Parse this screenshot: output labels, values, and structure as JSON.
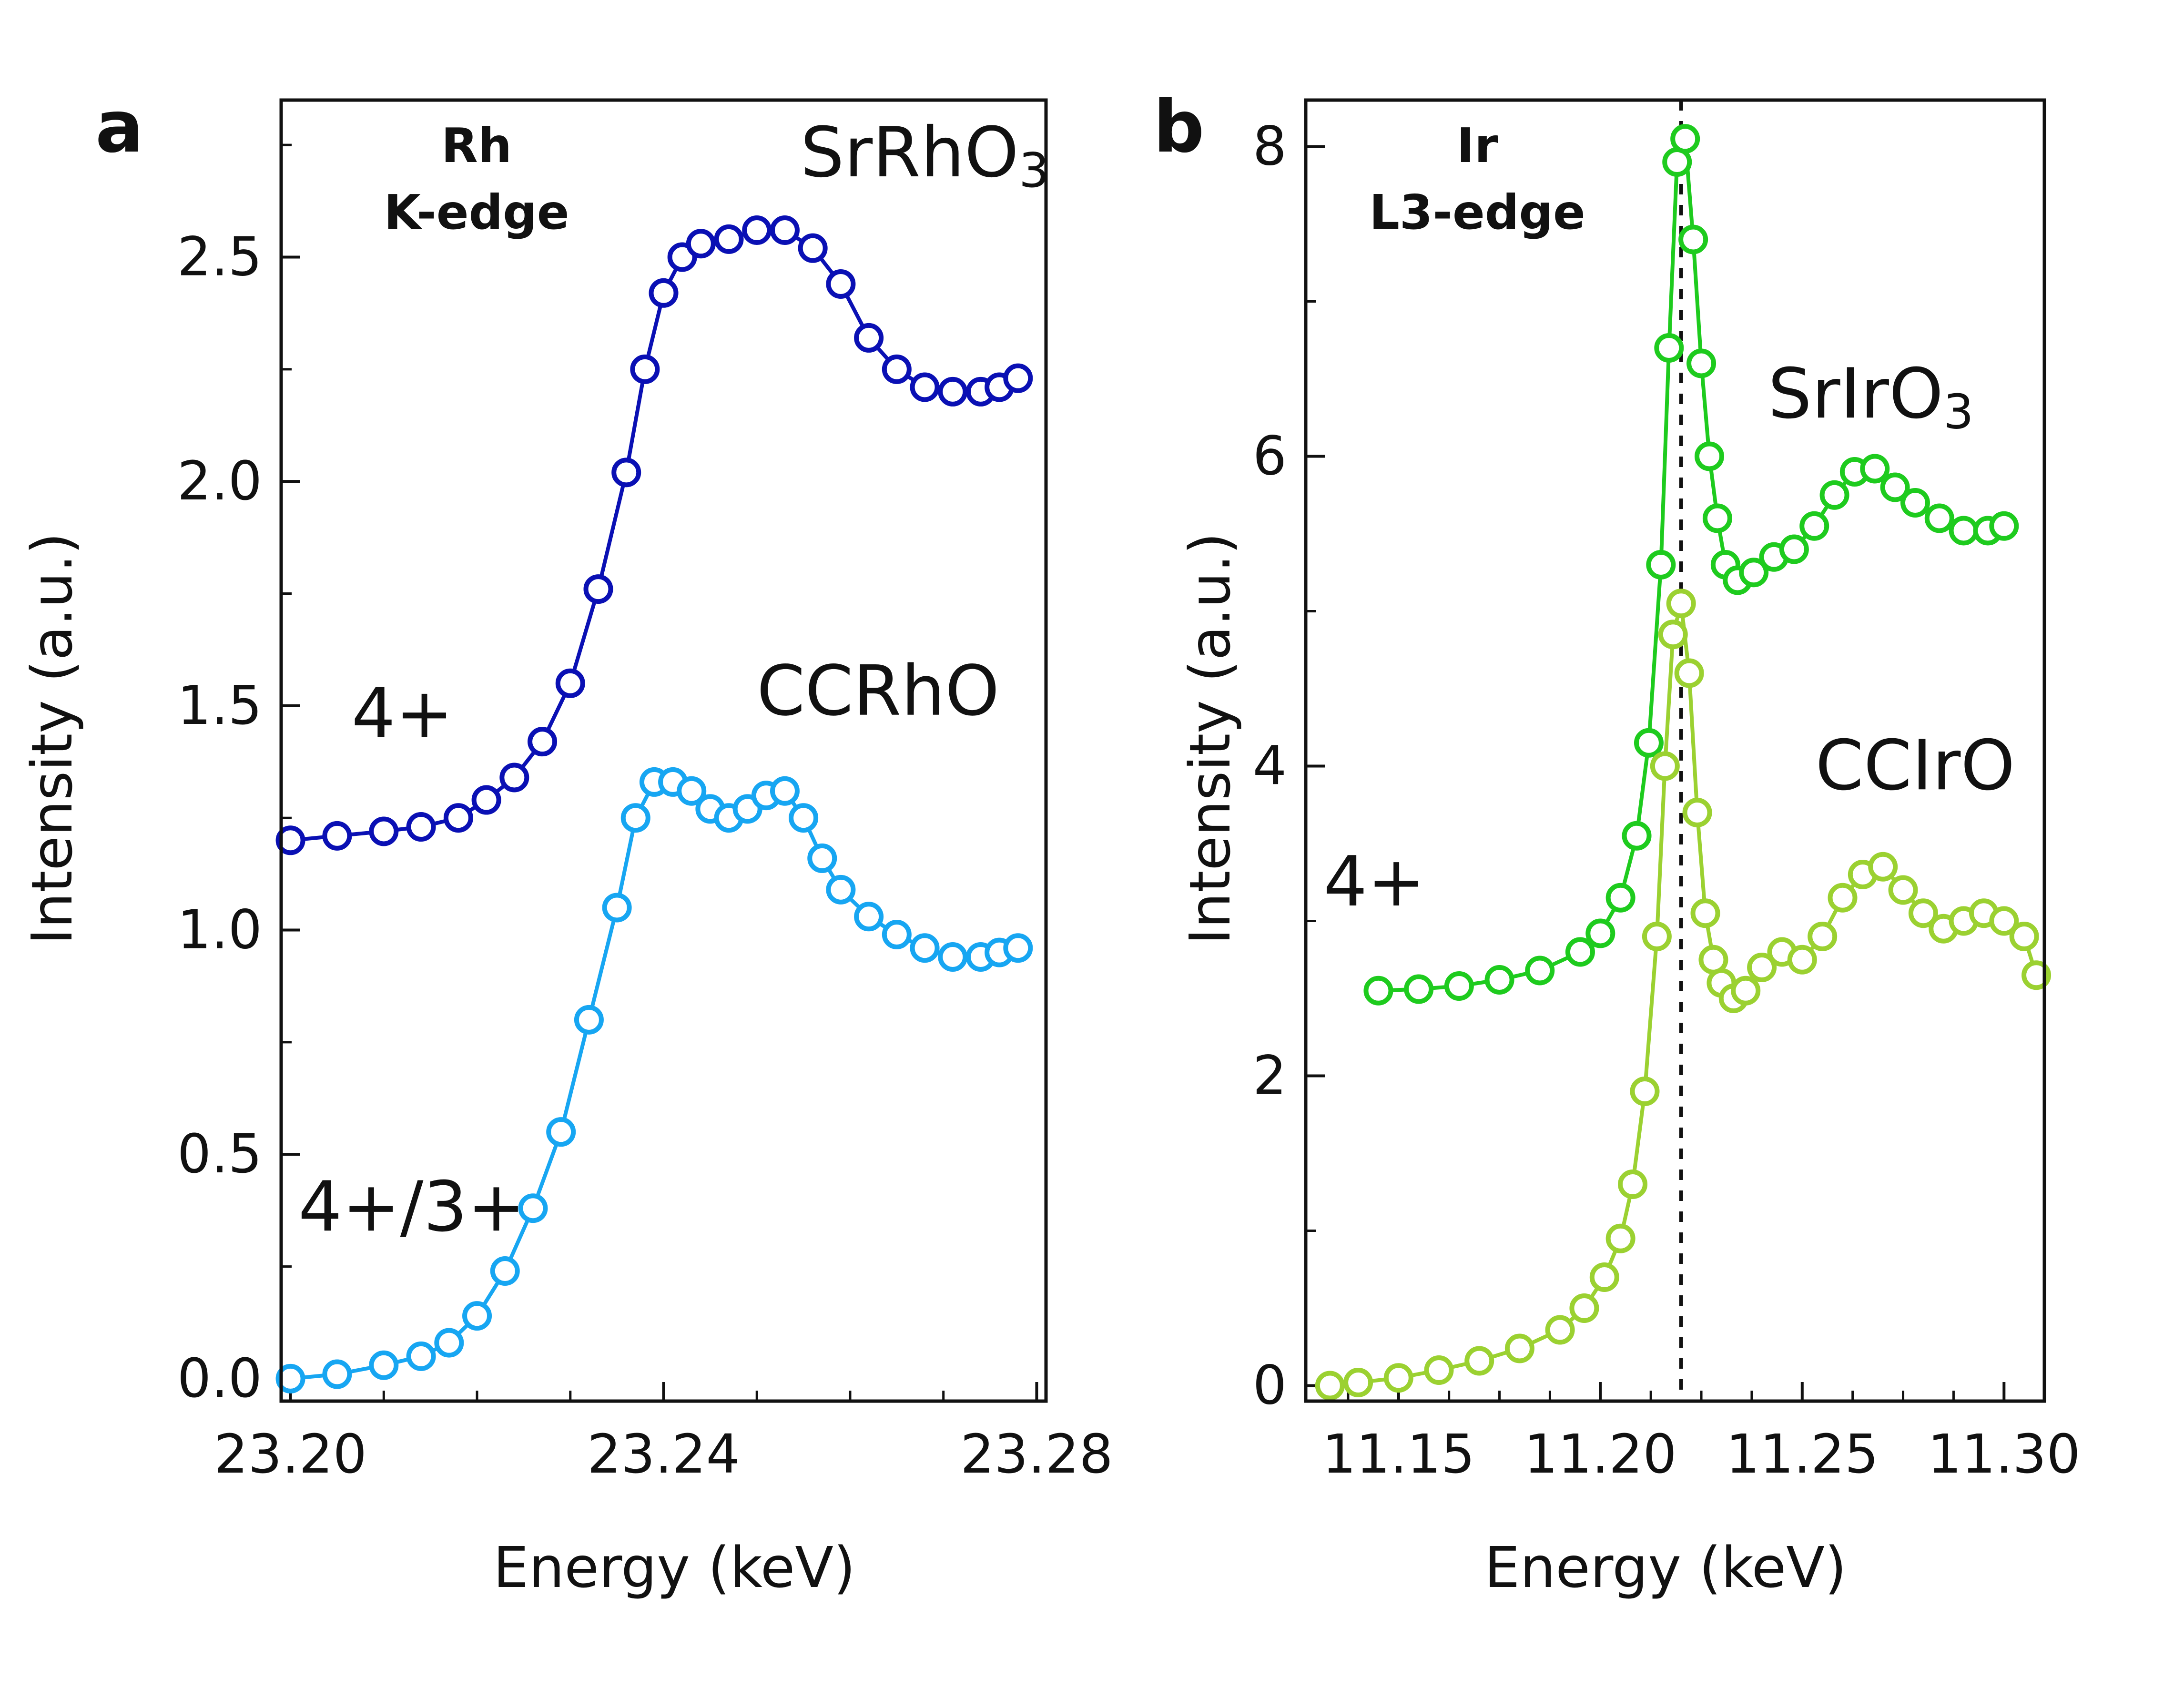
{
  "chart_data": [
    {
      "panel": "a",
      "type": "line",
      "edge_label_lines": [
        "Rh",
        "K-edge"
      ],
      "xlabel": "Energy (keV)",
      "ylabel": "Intensity (a.u.)",
      "xlim": [
        23.199,
        23.281
      ],
      "ylim": [
        -0.05,
        2.85
      ],
      "xticks": [
        23.2,
        23.24,
        23.28
      ],
      "xtick_labels": [
        "23.20",
        "23.24",
        "23.28"
      ],
      "yticks": [
        0.0,
        0.5,
        1.0,
        1.5,
        2.0,
        2.5
      ],
      "ytick_labels": [
        "0.0",
        "0.5",
        "1.0",
        "1.5",
        "2.0",
        "2.5"
      ],
      "annotations": [
        {
          "text": "SrRhO",
          "sub": "3",
          "x": 23.268,
          "y": 2.68
        },
        {
          "text": "CCRhO",
          "x": 23.263,
          "y": 1.48
        },
        {
          "text": "4+",
          "x": 23.212,
          "y": 1.43
        },
        {
          "text": "4+/3+",
          "x": 23.213,
          "y": 0.33
        }
      ],
      "series": [
        {
          "name": "SrRhO3",
          "color": "#0a10b4",
          "x": [
            23.2,
            23.205,
            23.21,
            23.214,
            23.218,
            23.221,
            23.224,
            23.227,
            23.23,
            23.233,
            23.236,
            23.238,
            23.24,
            23.242,
            23.244,
            23.247,
            23.25,
            23.253,
            23.256,
            23.259,
            23.262,
            23.265,
            23.268,
            23.271,
            23.274,
            23.276,
            23.278
          ],
          "y": [
            1.2,
            1.21,
            1.22,
            1.23,
            1.25,
            1.29,
            1.34,
            1.42,
            1.55,
            1.76,
            2.02,
            2.25,
            2.42,
            2.5,
            2.53,
            2.54,
            2.56,
            2.56,
            2.52,
            2.44,
            2.32,
            2.25,
            2.21,
            2.2,
            2.2,
            2.21,
            2.23
          ]
        },
        {
          "name": "CCRhO",
          "color": "#17a6f2",
          "x": [
            23.2,
            23.205,
            23.21,
            23.214,
            23.217,
            23.22,
            23.223,
            23.226,
            23.229,
            23.232,
            23.235,
            23.237,
            23.239,
            23.241,
            23.243,
            23.245,
            23.247,
            23.249,
            23.251,
            23.253,
            23.255,
            23.257,
            23.259,
            23.262,
            23.265,
            23.268,
            23.271,
            23.274,
            23.276,
            23.278
          ],
          "y": [
            0.0,
            0.01,
            0.03,
            0.05,
            0.08,
            0.14,
            0.24,
            0.38,
            0.55,
            0.8,
            1.05,
            1.25,
            1.33,
            1.33,
            1.31,
            1.27,
            1.25,
            1.27,
            1.3,
            1.31,
            1.25,
            1.16,
            1.09,
            1.03,
            0.99,
            0.96,
            0.94,
            0.94,
            0.95,
            0.96
          ]
        }
      ]
    },
    {
      "panel": "b",
      "type": "line",
      "edge_label_lines": [
        "Ir",
        "L3-edge"
      ],
      "xlabel": "Energy (keV)",
      "ylabel": "Intensity (a.u.)",
      "xlim": [
        11.127,
        11.31
      ],
      "ylim": [
        -0.1,
        8.3
      ],
      "xticks": [
        11.15,
        11.2,
        11.25,
        11.3
      ],
      "xtick_labels": [
        "11.15",
        "11.20",
        "11.25",
        "11.30"
      ],
      "yticks": [
        0,
        2,
        4,
        6,
        8
      ],
      "ytick_labels": [
        "0",
        "2",
        "4",
        "6",
        "8"
      ],
      "vline": 11.22,
      "annotations": [
        {
          "text": "SrIrO",
          "sub": "3",
          "x": 11.267,
          "y": 6.25
        },
        {
          "text": "CCIrO",
          "x": 11.278,
          "y": 3.85
        },
        {
          "text": "4+",
          "x": 11.144,
          "y": 3.1
        }
      ],
      "series": [
        {
          "name": "SrIrO3",
          "color": "#1ecb1e",
          "x": [
            11.145,
            11.155,
            11.165,
            11.175,
            11.185,
            11.195,
            11.2,
            11.205,
            11.209,
            11.212,
            11.215,
            11.217,
            11.219,
            11.221,
            11.223,
            11.225,
            11.227,
            11.229,
            11.231,
            11.234,
            11.238,
            11.243,
            11.248,
            11.253,
            11.258,
            11.263,
            11.268,
            11.273,
            11.278,
            11.284,
            11.29,
            11.296,
            11.3
          ],
          "y": [
            2.55,
            2.56,
            2.58,
            2.62,
            2.68,
            2.8,
            2.92,
            3.15,
            3.55,
            4.15,
            5.3,
            6.7,
            7.9,
            8.05,
            7.4,
            6.6,
            6.0,
            5.6,
            5.3,
            5.2,
            5.25,
            5.35,
            5.4,
            5.55,
            5.75,
            5.9,
            5.92,
            5.8,
            5.7,
            5.6,
            5.52,
            5.52,
            5.55
          ]
        },
        {
          "name": "CCIrO",
          "color": "#9bd131",
          "x": [
            11.133,
            11.14,
            11.15,
            11.16,
            11.17,
            11.18,
            11.19,
            11.196,
            11.201,
            11.205,
            11.208,
            11.211,
            11.214,
            11.216,
            11.218,
            11.22,
            11.222,
            11.224,
            11.226,
            11.228,
            11.23,
            11.233,
            11.236,
            11.24,
            11.245,
            11.25,
            11.255,
            11.26,
            11.265,
            11.27,
            11.275,
            11.28,
            11.285,
            11.29,
            11.295,
            11.3,
            11.305,
            11.308
          ],
          "y": [
            0.0,
            0.02,
            0.05,
            0.1,
            0.16,
            0.24,
            0.36,
            0.5,
            0.7,
            0.95,
            1.3,
            1.9,
            2.9,
            4.0,
            4.85,
            5.05,
            4.6,
            3.7,
            3.05,
            2.75,
            2.6,
            2.5,
            2.55,
            2.7,
            2.8,
            2.75,
            2.9,
            3.15,
            3.3,
            3.35,
            3.2,
            3.05,
            2.95,
            3.0,
            3.05,
            3.0,
            2.9,
            2.65
          ]
        }
      ]
    }
  ]
}
